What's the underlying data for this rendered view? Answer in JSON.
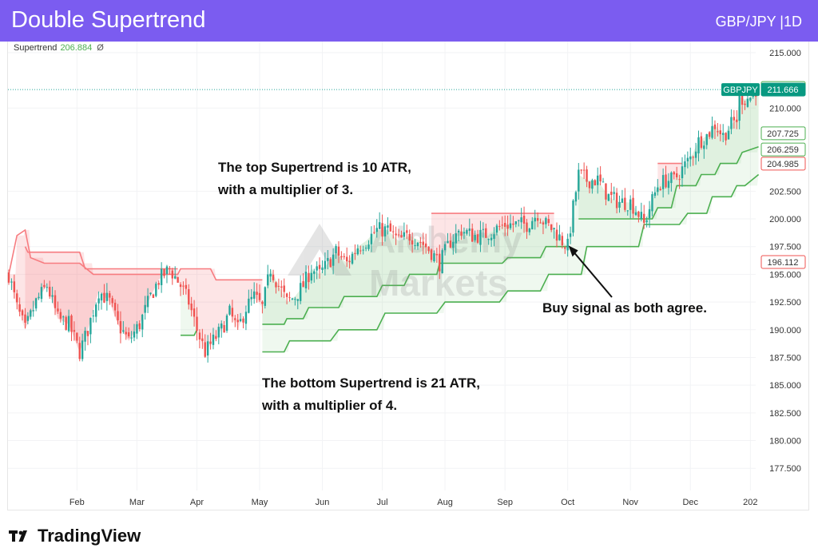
{
  "header": {
    "title": "Double Supertrend",
    "symbol": "GBP/JPY |1D"
  },
  "legend": {
    "name": "Supertrend",
    "value": "206.884",
    "extra": "Ø"
  },
  "annotations": {
    "top_line1": "The top Supertrend is 10 ATR,",
    "top_line2": "with a multiplier of 3.",
    "bottom_line1": "The bottom Supertrend is 21 ATR,",
    "bottom_line2": "with a multiplier of 4.",
    "buy": "Buy signal as both agree."
  },
  "watermark": {
    "line1": "Alchemy",
    "line2": "Markets"
  },
  "footer": {
    "brand": "TradingView"
  },
  "colors": {
    "header": "#7b5cf0",
    "up": "#26a69a",
    "down": "#ef5350",
    "st_up": "#4caf50",
    "st_down": "#f77c80",
    "grid": "#f2f3f5"
  },
  "chart_data": {
    "type": "candlestick",
    "symbol": "GBP/JPY",
    "timeframe": "1D",
    "ylim": [
      175.5,
      216.0
    ],
    "y_ticks": [
      "215.000",
      "210.000",
      "202.500",
      "200.000",
      "197.500",
      "195.000",
      "192.500",
      "190.000",
      "187.500",
      "185.000",
      "182.500",
      "180.000",
      "177.500"
    ],
    "x_ticks": [
      "Feb",
      "Mar",
      "Apr",
      "May",
      "Jun",
      "Jul",
      "Aug",
      "Sep",
      "Oct",
      "Nov",
      "Dec",
      "202"
    ],
    "x_tick_day": [
      25,
      47,
      69,
      92,
      115,
      137,
      160,
      182,
      205,
      228,
      250,
      272
    ],
    "price_labels": [
      {
        "value": 211.814,
        "text": "211.814",
        "kind": "outline-green"
      },
      {
        "value": 211.666,
        "text": "211.666",
        "kind": "filled-green",
        "tag": "GBPJPY"
      },
      {
        "value": 207.725,
        "text": "207.725",
        "kind": "outline-green"
      },
      {
        "value": 206.259,
        "text": "206.259",
        "kind": "outline-green"
      },
      {
        "value": 204.985,
        "text": "204.985",
        "kind": "outline-red"
      },
      {
        "value": 196.112,
        "text": "196.112",
        "kind": "outline-red"
      }
    ],
    "close_line": 211.666,
    "close_path": [
      [
        0,
        195.0
      ],
      [
        3,
        192.0
      ],
      [
        6,
        190.0
      ],
      [
        10,
        192.5
      ],
      [
        14,
        194.0
      ],
      [
        18,
        191.0
      ],
      [
        22,
        190.5
      ],
      [
        26,
        188.0
      ],
      [
        29,
        190.0
      ],
      [
        33,
        193.5
      ],
      [
        37,
        192.5
      ],
      [
        40,
        190.5
      ],
      [
        44,
        189.0
      ],
      [
        48,
        190.5
      ],
      [
        52,
        193.0
      ],
      [
        55,
        194.5
      ],
      [
        59,
        195.5
      ],
      [
        63,
        194.0
      ],
      [
        66,
        192.5
      ],
      [
        69,
        190.0
      ],
      [
        72,
        188.0
      ],
      [
        75,
        189.0
      ],
      [
        78,
        190.0
      ],
      [
        81,
        191.5
      ],
      [
        84,
        190.0
      ],
      [
        87,
        192.0
      ],
      [
        90,
        193.0
      ],
      [
        93,
        192.0
      ],
      [
        96,
        195.5
      ],
      [
        99,
        194.0
      ],
      [
        102,
        192.5
      ],
      [
        105,
        193.0
      ],
      [
        108,
        194.0
      ],
      [
        111,
        195.5
      ],
      [
        114,
        195.0
      ],
      [
        117,
        196.0
      ],
      [
        120,
        197.0
      ],
      [
        124,
        196.0
      ],
      [
        128,
        197.5
      ],
      [
        131,
        198.0
      ],
      [
        135,
        199.0
      ],
      [
        139,
        199.0
      ],
      [
        143,
        198.0
      ],
      [
        147,
        198.5
      ],
      [
        151,
        198.0
      ],
      [
        155,
        197.0
      ],
      [
        158,
        196.0
      ],
      [
        162,
        198.0
      ],
      [
        166,
        199.0
      ],
      [
        170,
        198.5
      ],
      [
        174,
        198.5
      ],
      [
        178,
        199.0
      ],
      [
        182,
        199.5
      ],
      [
        186,
        199.5
      ],
      [
        190,
        199.5
      ],
      [
        194,
        200.5
      ],
      [
        197,
        199.5
      ],
      [
        200,
        199.0
      ],
      [
        203,
        198.0
      ],
      [
        205,
        197.5
      ],
      [
        207,
        201.0
      ],
      [
        209,
        204.0
      ],
      [
        212,
        203.5
      ],
      [
        216,
        203.5
      ],
      [
        220,
        202.0
      ],
      [
        224,
        201.5
      ],
      [
        228,
        201.5
      ],
      [
        231,
        200.5
      ],
      [
        233,
        199.5
      ],
      [
        235,
        201.0
      ],
      [
        238,
        203.0
      ],
      [
        241,
        203.5
      ],
      [
        244,
        203.5
      ],
      [
        247,
        204.5
      ],
      [
        250,
        205.5
      ],
      [
        253,
        207.0
      ],
      [
        256,
        207.5
      ],
      [
        259,
        208.5
      ],
      [
        262,
        207.5
      ],
      [
        265,
        208.5
      ],
      [
        267,
        209.0
      ],
      [
        268,
        211.0
      ],
      [
        270,
        210.8
      ],
      [
        272,
        211.0
      ],
      [
        274,
        211.7
      ]
    ],
    "series": [
      {
        "name": "Supertrend (10, 3)",
        "segments": [
          {
            "dir": "down",
            "points": [
              [
                0,
                195.0
              ],
              [
                3,
                198.5
              ],
              [
                6,
                199.0
              ],
              [
                8,
                196.5
              ],
              [
                13,
                196.0
              ],
              [
                26,
                196.0
              ],
              [
                31,
                195.0
              ],
              [
                62,
                195.0
              ],
              [
                63,
                195.5
              ],
              [
                74,
                195.5
              ],
              [
                76,
                194.5
              ],
              [
                93,
                194.5
              ]
            ]
          },
          {
            "dir": "up",
            "points": [
              [
                63,
                189.5
              ],
              [
                68,
                189.5
              ],
              [
                69,
                190.0
              ]
            ]
          },
          {
            "dir": "up",
            "points": [
              [
                93,
                190.5
              ],
              [
                101,
                190.5
              ],
              [
                102,
                191.0
              ],
              [
                108,
                191.0
              ],
              [
                110,
                192.0
              ],
              [
                121,
                192.0
              ],
              [
                123,
                193.0
              ],
              [
                135,
                193.0
              ],
              [
                137,
                194.0
              ],
              [
                145,
                194.0
              ],
              [
                147,
                195.0
              ],
              [
                157,
                195.0
              ],
              [
                158,
                196.0
              ],
              [
                181,
                196.0
              ],
              [
                183,
                196.5
              ],
              [
                195,
                196.5
              ],
              [
                197,
                197.5
              ],
              [
                205,
                197.5
              ]
            ]
          },
          {
            "dir": "down",
            "points": [
              [
                155,
                200.5
              ],
              [
                200,
                200.5
              ]
            ]
          },
          {
            "dir": "up",
            "points": [
              [
                209,
                200.0
              ],
              [
                236,
                200.0
              ],
              [
                238,
                201.0
              ],
              [
                243,
                201.0
              ],
              [
                245,
                203.0
              ],
              [
                252,
                203.0
              ],
              [
                254,
                204.0
              ],
              [
                259,
                204.0
              ],
              [
                261,
                205.0
              ],
              [
                267,
                205.0
              ],
              [
                269,
                206.0
              ],
              [
                275,
                206.5
              ]
            ]
          },
          {
            "dir": "down",
            "points": [
              [
                238,
                205.0
              ],
              [
                247,
                205.0
              ]
            ]
          }
        ]
      },
      {
        "name": "Supertrend (21, 4)",
        "segments": [
          {
            "dir": "down",
            "points": [
              [
                6,
                197.5
              ],
              [
                7,
                197.0
              ],
              [
                26,
                197.0
              ],
              [
                28,
                195.5
              ],
              [
                62,
                195.5
              ]
            ]
          },
          {
            "dir": "up",
            "points": [
              [
                93,
                188.0
              ],
              [
                101,
                188.0
              ],
              [
                103,
                189.0
              ],
              [
                118,
                189.0
              ],
              [
                121,
                190.0
              ],
              [
                135,
                190.0
              ],
              [
                138,
                191.5
              ],
              [
                157,
                191.5
              ],
              [
                160,
                192.5
              ],
              [
                180,
                192.5
              ],
              [
                183,
                193.5
              ],
              [
                195,
                193.5
              ],
              [
                198,
                195.0
              ],
              [
                210,
                195.0
              ],
              [
                212,
                197.5
              ],
              [
                231,
                197.5
              ],
              [
                233,
                199.5
              ],
              [
                246,
                199.5
              ],
              [
                249,
                200.5
              ],
              [
                256,
                200.5
              ],
              [
                258,
                202.0
              ],
              [
                265,
                202.0
              ],
              [
                267,
                203.0
              ],
              [
                270,
                203.0
              ],
              [
                275,
                204.0
              ]
            ]
          }
        ]
      }
    ],
    "signal": {
      "label": "Buy signal as both agree.",
      "day": 205,
      "price": 197.6
    }
  }
}
